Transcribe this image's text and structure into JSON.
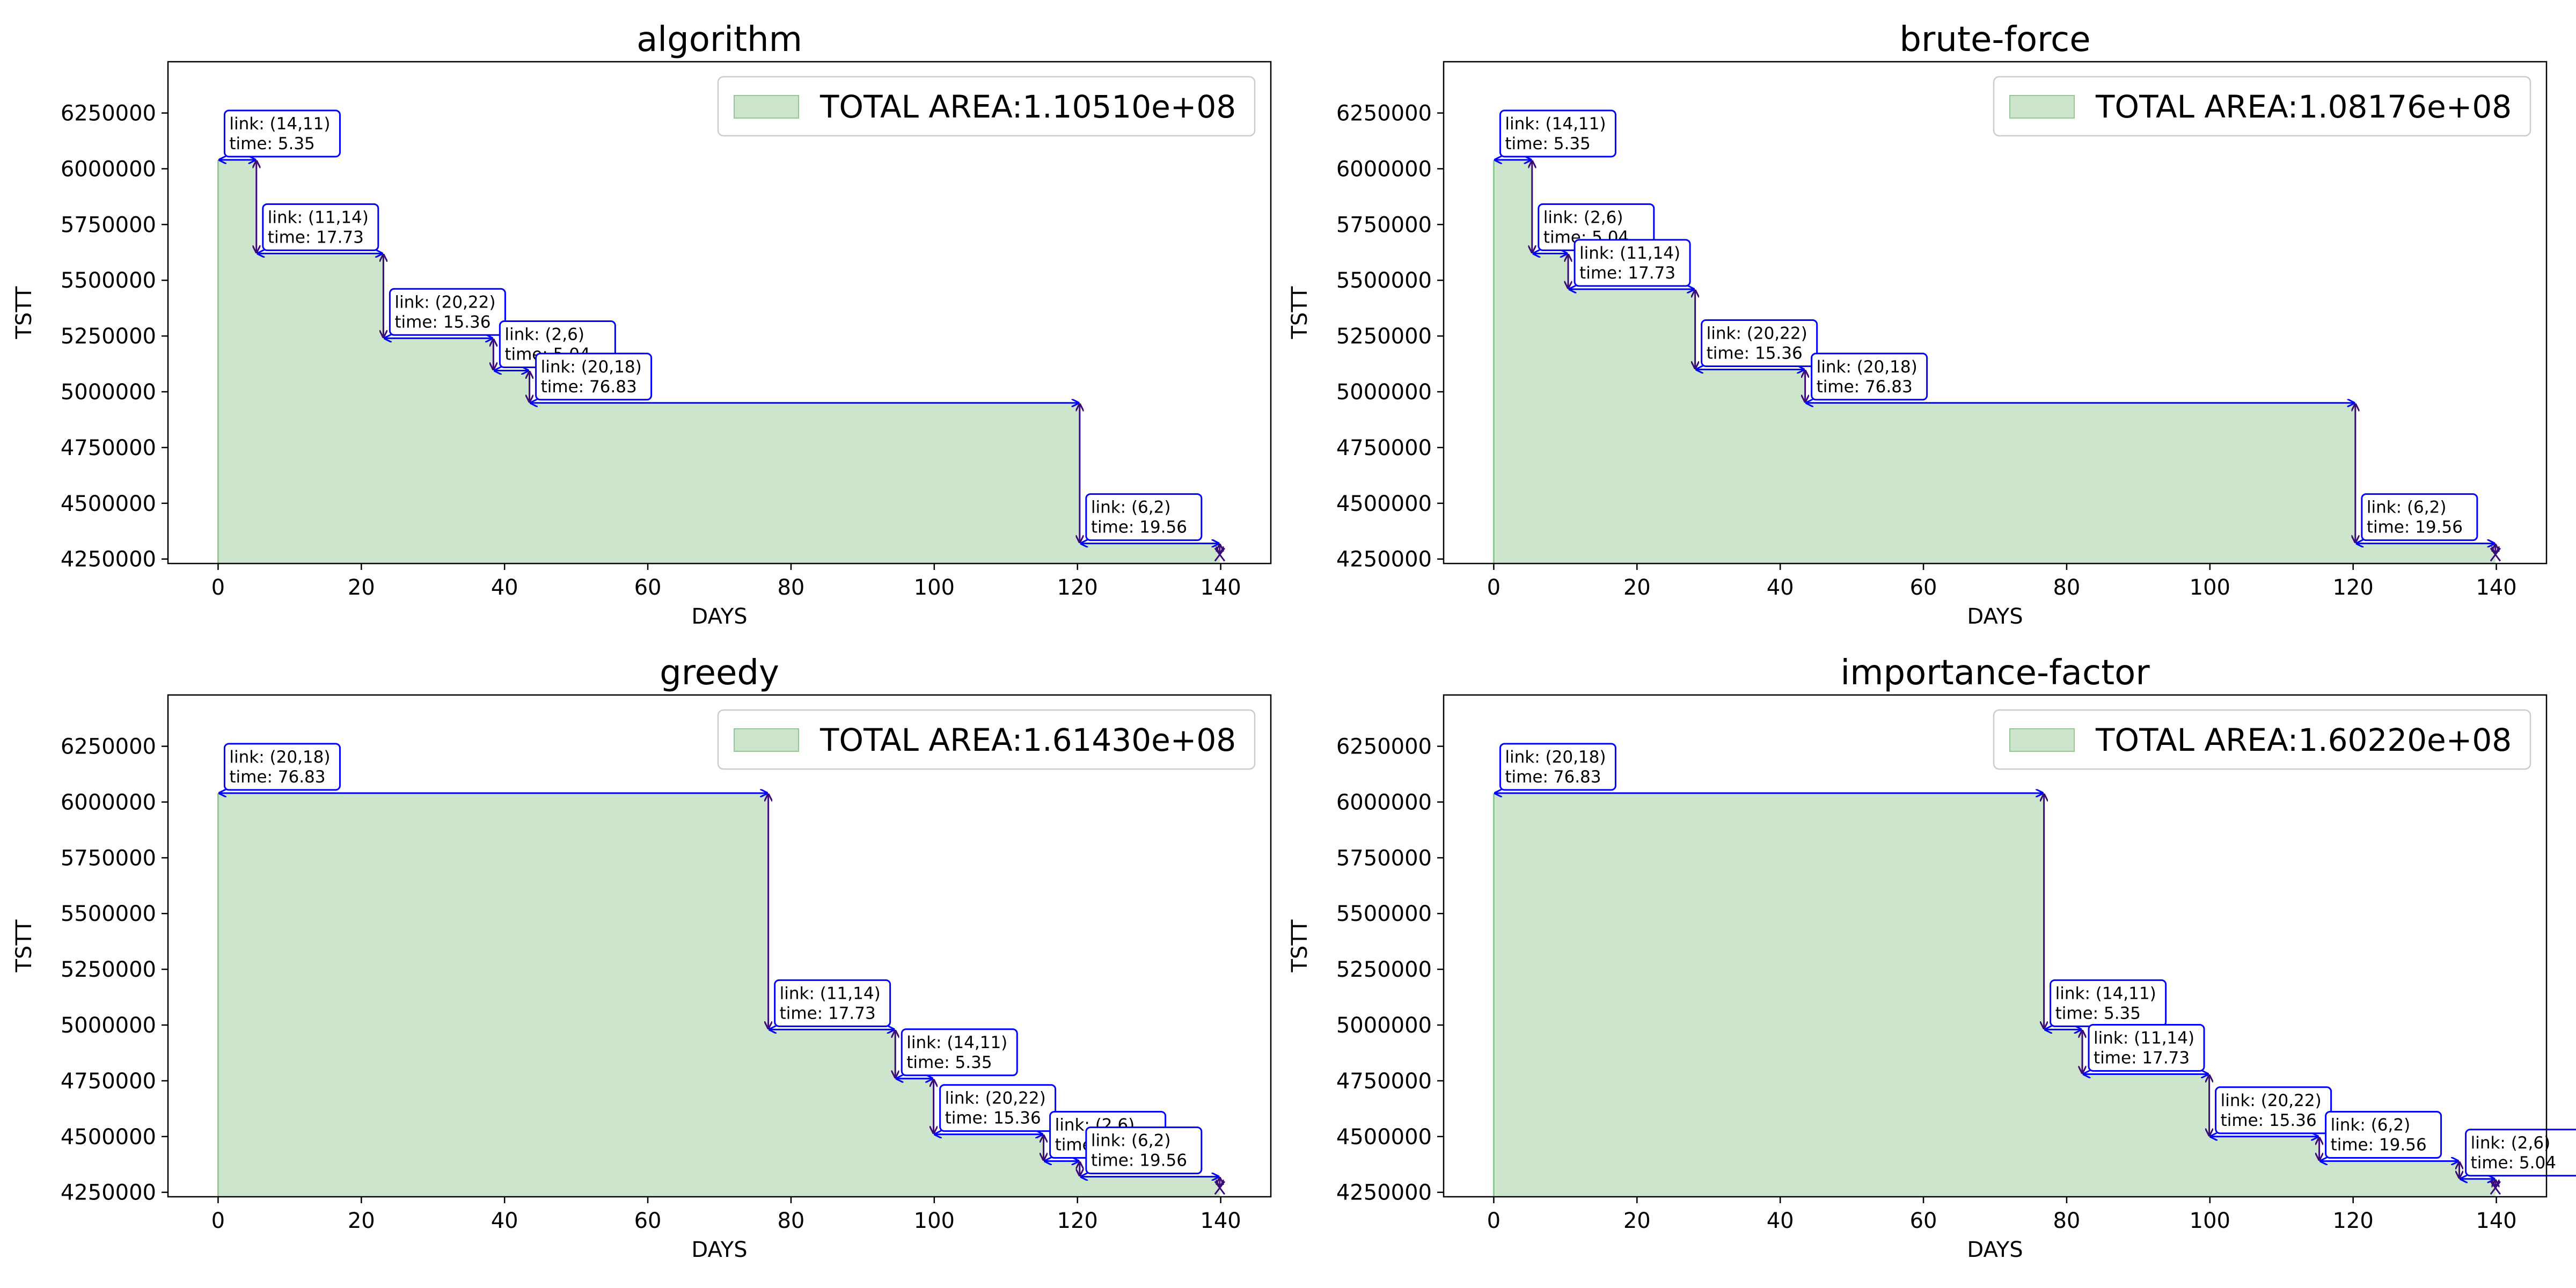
{
  "colors": {
    "area": "#cce5cc",
    "area_edge": "#93c793",
    "arrow_h": "#0000ff",
    "arrow_v": "#3b0a7a",
    "box_edge": "#0000ff",
    "marker": "#3b0a7a"
  },
  "chart_data": [
    {
      "type": "area",
      "title": "algorithm",
      "xlabel": "DAYS",
      "ylabel": "TSTT",
      "legend": "TOTAL AREA:1.10510e+08",
      "legend_position": "top-right",
      "xlim": [
        -7,
        147
      ],
      "ylim": [
        4230000,
        6480000
      ],
      "xticks": [
        0,
        20,
        40,
        60,
        80,
        100,
        120,
        140
      ],
      "yticks": [
        4250000,
        4500000,
        4750000,
        5000000,
        5250000,
        5500000,
        5750000,
        6000000,
        6250000
      ],
      "x": [
        0,
        5.35,
        23.08,
        38.44,
        43.48,
        120.31,
        139.87
      ],
      "y": [
        6040000,
        5620000,
        5240000,
        5095000,
        4950000,
        4320000,
        4270000
      ],
      "annotations": [
        {
          "line1": "link: (14,11)",
          "line2": "time: 5.35"
        },
        {
          "line1": "link: (11,14)",
          "line2": "time: 17.73"
        },
        {
          "line1": "link: (20,22)",
          "line2": "time: 15.36"
        },
        {
          "line1": "link: (2,6)",
          "line2": "time: 5.04"
        },
        {
          "line1": "link: (20,18)",
          "line2": "time: 76.83"
        },
        {
          "line1": "link: (6,2)",
          "line2": "time: 19.56"
        }
      ]
    },
    {
      "type": "area",
      "title": "brute-force",
      "xlabel": "DAYS",
      "ylabel": "TSTT",
      "legend": "TOTAL AREA:1.08176e+08",
      "legend_position": "top-right",
      "xlim": [
        -7,
        147
      ],
      "ylim": [
        4230000,
        6480000
      ],
      "xticks": [
        0,
        20,
        40,
        60,
        80,
        100,
        120,
        140
      ],
      "yticks": [
        4250000,
        4500000,
        4750000,
        5000000,
        5250000,
        5500000,
        5750000,
        6000000,
        6250000
      ],
      "x": [
        0,
        5.35,
        10.39,
        28.12,
        43.48,
        120.31,
        139.87
      ],
      "y": [
        6040000,
        5620000,
        5460000,
        5100000,
        4950000,
        4320000,
        4270000
      ],
      "annotations": [
        {
          "line1": "link: (14,11)",
          "line2": "time: 5.35"
        },
        {
          "line1": "link: (2,6)",
          "line2": "time: 5.04"
        },
        {
          "line1": "link: (11,14)",
          "line2": "time: 17.73"
        },
        {
          "line1": "link: (20,22)",
          "line2": "time: 15.36"
        },
        {
          "line1": "link: (20,18)",
          "line2": "time: 76.83"
        },
        {
          "line1": "link: (6,2)",
          "line2": "time: 19.56"
        }
      ]
    },
    {
      "type": "area",
      "title": "greedy",
      "xlabel": "DAYS",
      "ylabel": "TSTT",
      "legend": "TOTAL AREA:1.61430e+08",
      "legend_position": "top-right",
      "xlim": [
        -7,
        147
      ],
      "ylim": [
        4230000,
        6480000
      ],
      "xticks": [
        0,
        20,
        40,
        60,
        80,
        100,
        120,
        140
      ],
      "yticks": [
        4250000,
        4500000,
        4750000,
        5000000,
        5250000,
        5500000,
        5750000,
        6000000,
        6250000
      ],
      "x": [
        0,
        76.83,
        94.56,
        99.91,
        115.27,
        120.31,
        139.87
      ],
      "y": [
        6040000,
        4980000,
        4760000,
        4510000,
        4390000,
        4320000,
        4270000
      ],
      "annotations": [
        {
          "line1": "link: (20,18)",
          "line2": "time: 76.83"
        },
        {
          "line1": "link: (11,14)",
          "line2": "time: 17.73"
        },
        {
          "line1": "link: (14,11)",
          "line2": "time: 5.35"
        },
        {
          "line1": "link: (20,22)",
          "line2": "time: 15.36"
        },
        {
          "line1": "link: (2,6)",
          "line2": "time: 5.04"
        },
        {
          "line1": "link: (6,2)",
          "line2": "time: 19.56"
        }
      ]
    },
    {
      "type": "area",
      "title": "importance-factor",
      "xlabel": "DAYS",
      "ylabel": "TSTT",
      "legend": "TOTAL AREA:1.60220e+08",
      "legend_position": "top-right",
      "xlim": [
        -7,
        147
      ],
      "ylim": [
        4230000,
        6480000
      ],
      "xticks": [
        0,
        20,
        40,
        60,
        80,
        100,
        120,
        140
      ],
      "yticks": [
        4250000,
        4500000,
        4750000,
        5000000,
        5250000,
        5500000,
        5750000,
        6000000,
        6250000
      ],
      "x": [
        0,
        76.83,
        82.18,
        99.91,
        115.27,
        134.83,
        139.87
      ],
      "y": [
        6040000,
        4980000,
        4780000,
        4500000,
        4390000,
        4310000,
        4270000
      ],
      "annotations": [
        {
          "line1": "link: (20,18)",
          "line2": "time: 76.83"
        },
        {
          "line1": "link: (14,11)",
          "line2": "time: 5.35"
        },
        {
          "line1": "link: (11,14)",
          "line2": "time: 17.73"
        },
        {
          "line1": "link: (20,22)",
          "line2": "time: 15.36"
        },
        {
          "line1": "link: (6,2)",
          "line2": "time: 19.56"
        },
        {
          "line1": "link: (2,6)",
          "line2": "time: 5.04"
        }
      ]
    }
  ]
}
